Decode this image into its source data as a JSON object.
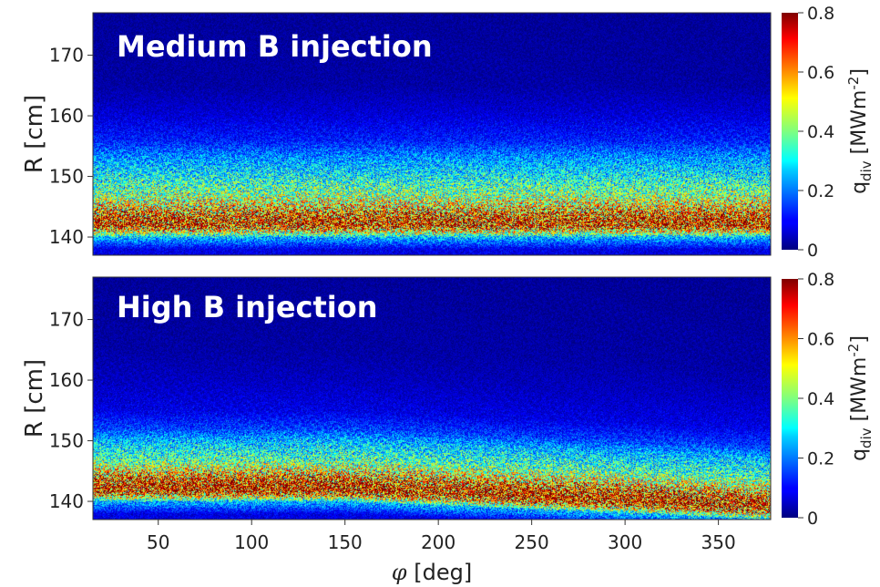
{
  "chart_data": [
    {
      "type": "heatmap",
      "title": "Medium B injection",
      "xlabel": "",
      "ylabel": "R [cm]",
      "xlim": [
        15,
        378
      ],
      "ylim": [
        137,
        177
      ],
      "yticks": [
        140,
        150,
        160,
        170
      ],
      "colorbar": {
        "label": "q_div [MWm^-2]",
        "ticks": [
          0,
          0.2,
          0.4,
          0.6,
          0.8
        ],
        "range": [
          0,
          0.8
        ],
        "colormap": "jet"
      },
      "profile": {
        "R": [
          138,
          140,
          141,
          142,
          143,
          144,
          145,
          147,
          150,
          153,
          156,
          160,
          165,
          177
        ],
        "q_div": [
          0.08,
          0.25,
          0.5,
          0.72,
          0.7,
          0.62,
          0.52,
          0.4,
          0.3,
          0.22,
          0.12,
          0.07,
          0.03,
          0.02
        ]
      }
    },
    {
      "type": "heatmap",
      "title": "High B injection",
      "xlabel": "φ [deg]",
      "ylabel": "R [cm]",
      "xlim": [
        15,
        378
      ],
      "ylim": [
        137,
        177
      ],
      "xticks": [
        50,
        100,
        150,
        200,
        250,
        300,
        350
      ],
      "yticks": [
        140,
        150,
        160,
        170
      ],
      "colorbar": {
        "label": "q_div [MWm^-2]",
        "ticks": [
          0,
          0.2,
          0.4,
          0.6,
          0.8
        ],
        "range": [
          0,
          0.8
        ],
        "colormap": "jet"
      },
      "profile": {
        "R": [
          138,
          140,
          141,
          142,
          143,
          144,
          145,
          147,
          150,
          152,
          155,
          160,
          165,
          177
        ],
        "q_div": [
          0.08,
          0.25,
          0.55,
          0.75,
          0.72,
          0.62,
          0.5,
          0.35,
          0.25,
          0.15,
          0.08,
          0.05,
          0.03,
          0.02
        ]
      }
    }
  ],
  "text": {
    "panel1_title": "Medium B injection",
    "panel2_title": "High B injection",
    "ylabel": "R [cm]",
    "xlabel_symbol": "φ",
    "xlabel_unit": " [deg]",
    "cbar_q": "q",
    "cbar_sub": "div",
    "cbar_unit_pre": " [MWm",
    "cbar_unit_sup": "-2",
    "cbar_unit_post": "]"
  }
}
